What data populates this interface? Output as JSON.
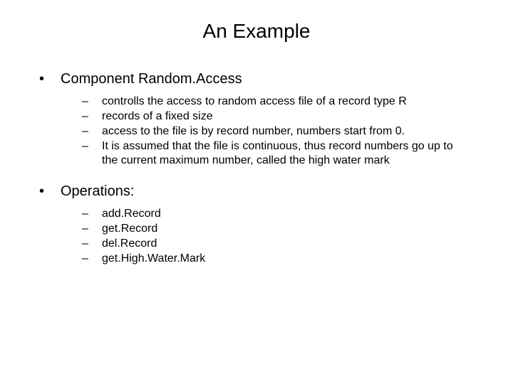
{
  "title": "An Example",
  "section1": {
    "heading": "Component Random.Access",
    "items": [
      "controlls the access to random access file of a record type R",
      "records of a fixed size",
      "access to the file is by record number, numbers start from 0.",
      "It is assumed that the file is continuous, thus record numbers go up to the current maximum number, called the high water mark"
    ]
  },
  "section2": {
    "heading": "Operations:",
    "items": [
      "add.Record",
      "get.Record",
      "del.Record",
      "get.High.Water.Mark"
    ]
  },
  "colors": {
    "background": "#ffffff",
    "text": "#000000"
  },
  "typography": {
    "title_fontsize": 28,
    "heading_fontsize": 20,
    "body_fontsize": 16,
    "font_family": "Arial"
  }
}
